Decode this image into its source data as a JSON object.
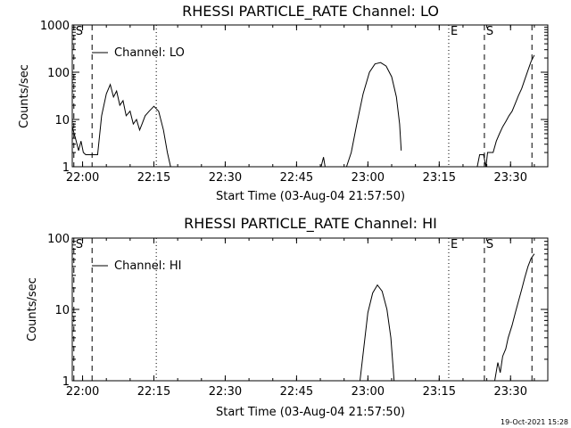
{
  "chart_data": [
    {
      "type": "line",
      "title": "RHESSI PARTICLE_RATE Channel: LO",
      "xlabel": "Start Time (03-Aug-04 21:57:50)",
      "ylabel": "Counts/sec",
      "yscale": "log",
      "ylim": [
        1,
        1000
      ],
      "xlim": [
        "21:57:50",
        "23:37:50"
      ],
      "x_ticks": [
        "22:00",
        "22:15",
        "22:30",
        "22:45",
        "23:00",
        "23:15",
        "23:30"
      ],
      "y_ticks": [
        "1",
        "10",
        "100",
        "1000"
      ],
      "legend": {
        "label": "Channel: LO",
        "placement": "top-left"
      },
      "markers": [
        {
          "label": "S",
          "time": "21:58:10",
          "style": "dashed"
        },
        {
          "label": "",
          "time": "22:02:00",
          "style": "dashed"
        },
        {
          "label": "",
          "time": "22:15:30",
          "style": "dotted"
        },
        {
          "label": "E",
          "time": "23:17:00",
          "style": "dotted"
        },
        {
          "label": "S",
          "time": "23:24:30",
          "style": "dashed"
        },
        {
          "label": "",
          "time": "23:34:30",
          "style": "dashed"
        }
      ],
      "series": [
        {
          "values": [
            {
              "t": "21:57:50",
              "y": 7
            },
            {
              "t": "21:58:30",
              "y": 4
            },
            {
              "t": "21:59:10",
              "y": 2.2
            },
            {
              "t": "21:59:40",
              "y": 3.5
            },
            {
              "t": "22:00:10",
              "y": 2
            },
            {
              "t": "22:00:40",
              "y": 1.8
            },
            {
              "t": "22:02:00",
              "y": 1.8
            },
            {
              "t": "22:03:10",
              "y": 1.8
            },
            {
              "t": "22:04:00",
              "y": 12
            },
            {
              "t": "22:05:00",
              "y": 35
            },
            {
              "t": "22:05:50",
              "y": 55
            },
            {
              "t": "22:06:30",
              "y": 30
            },
            {
              "t": "22:07:10",
              "y": 40
            },
            {
              "t": "22:07:50",
              "y": 20
            },
            {
              "t": "22:08:30",
              "y": 25
            },
            {
              "t": "22:09:10",
              "y": 12
            },
            {
              "t": "22:10:00",
              "y": 15
            },
            {
              "t": "22:10:40",
              "y": 8
            },
            {
              "t": "22:11:20",
              "y": 10
            },
            {
              "t": "22:12:00",
              "y": 6
            },
            {
              "t": "22:12:30",
              "y": 8
            },
            {
              "t": "22:13:10",
              "y": 12
            },
            {
              "t": "22:14:00",
              "y": 15
            },
            {
              "t": "22:15:00",
              "y": 19
            },
            {
              "t": "22:16:00",
              "y": 15
            },
            {
              "t": "22:17:00",
              "y": 6
            },
            {
              "t": "22:17:50",
              "y": 2
            },
            {
              "t": "22:18:30",
              "y": 1
            }
          ]
        },
        {
          "values": [
            {
              "t": "22:50:10",
              "y": 1
            },
            {
              "t": "22:50:40",
              "y": 1.6
            },
            {
              "t": "22:51:00",
              "y": 1
            }
          ]
        },
        {
          "values": [
            {
              "t": "22:55:30",
              "y": 1
            },
            {
              "t": "22:56:30",
              "y": 2
            },
            {
              "t": "22:57:40",
              "y": 8
            },
            {
              "t": "22:59:00",
              "y": 35
            },
            {
              "t": "23:00:20",
              "y": 100
            },
            {
              "t": "23:01:30",
              "y": 150
            },
            {
              "t": "23:02:40",
              "y": 160
            },
            {
              "t": "23:03:50",
              "y": 135
            },
            {
              "t": "23:05:00",
              "y": 80
            },
            {
              "t": "23:06:00",
              "y": 30
            },
            {
              "t": "23:06:40",
              "y": 8
            },
            {
              "t": "23:07:00",
              "y": 2.2
            }
          ]
        },
        {
          "values": [
            {
              "t": "23:23:00",
              "y": 1
            },
            {
              "t": "23:23:30",
              "y": 1.8
            },
            {
              "t": "23:24:20",
              "y": 1.8
            },
            {
              "t": "23:24:50",
              "y": 1
            },
            {
              "t": "23:25:10",
              "y": 2
            },
            {
              "t": "23:26:20",
              "y": 2
            },
            {
              "t": "23:27:00",
              "y": 3.5
            },
            {
              "t": "23:27:40",
              "y": 5
            },
            {
              "t": "23:28:20",
              "y": 7
            },
            {
              "t": "23:29:00",
              "y": 9
            },
            {
              "t": "23:29:40",
              "y": 12
            },
            {
              "t": "23:30:20",
              "y": 15
            },
            {
              "t": "23:31:00",
              "y": 22
            },
            {
              "t": "23:31:40",
              "y": 32
            },
            {
              "t": "23:32:20",
              "y": 45
            },
            {
              "t": "23:33:00",
              "y": 70
            },
            {
              "t": "23:33:40",
              "y": 110
            },
            {
              "t": "23:34:20",
              "y": 170
            },
            {
              "t": "23:35:00",
              "y": 230
            }
          ]
        }
      ]
    },
    {
      "type": "line",
      "title": "RHESSI PARTICLE_RATE Channel: HI",
      "xlabel": "Start Time (03-Aug-04 21:57:50)",
      "ylabel": "Counts/sec",
      "yscale": "log",
      "ylim": [
        1,
        100
      ],
      "xlim": [
        "21:57:50",
        "23:37:50"
      ],
      "x_ticks": [
        "22:00",
        "22:15",
        "22:30",
        "22:45",
        "23:00",
        "23:15",
        "23:30"
      ],
      "y_ticks": [
        "1",
        "10",
        "100"
      ],
      "legend": {
        "label": "Channel: HI",
        "placement": "top-left"
      },
      "markers": [
        {
          "label": "S",
          "time": "21:58:10",
          "style": "dashed"
        },
        {
          "label": "",
          "time": "22:02:00",
          "style": "dashed"
        },
        {
          "label": "",
          "time": "22:15:30",
          "style": "dotted"
        },
        {
          "label": "E",
          "time": "23:17:00",
          "style": "dotted"
        },
        {
          "label": "S",
          "time": "23:24:30",
          "style": "dashed"
        },
        {
          "label": "",
          "time": "23:34:30",
          "style": "dashed"
        }
      ],
      "series": [
        {
          "values": [
            {
              "t": "22:58:20",
              "y": 1
            },
            {
              "t": "22:59:10",
              "y": 3
            },
            {
              "t": "23:00:00",
              "y": 9
            },
            {
              "t": "23:01:00",
              "y": 17
            },
            {
              "t": "23:02:00",
              "y": 22
            },
            {
              "t": "23:03:00",
              "y": 18
            },
            {
              "t": "23:04:00",
              "y": 10
            },
            {
              "t": "23:04:50",
              "y": 4
            },
            {
              "t": "23:05:30",
              "y": 1
            }
          ]
        },
        {
          "values": [
            {
              "t": "23:26:40",
              "y": 1
            },
            {
              "t": "23:27:20",
              "y": 1.8
            },
            {
              "t": "23:27:50",
              "y": 1.3
            },
            {
              "t": "23:28:20",
              "y": 2.2
            },
            {
              "t": "23:29:00",
              "y": 2.8
            },
            {
              "t": "23:29:30",
              "y": 4
            },
            {
              "t": "23:30:20",
              "y": 6
            },
            {
              "t": "23:31:00",
              "y": 9
            },
            {
              "t": "23:31:40",
              "y": 13
            },
            {
              "t": "23:32:20",
              "y": 19
            },
            {
              "t": "23:33:00",
              "y": 28
            },
            {
              "t": "23:33:40",
              "y": 40
            },
            {
              "t": "23:34:20",
              "y": 52
            },
            {
              "t": "23:35:00",
              "y": 60
            }
          ]
        }
      ]
    }
  ],
  "footer": {
    "date": "19-Oct-2021 15:28"
  }
}
